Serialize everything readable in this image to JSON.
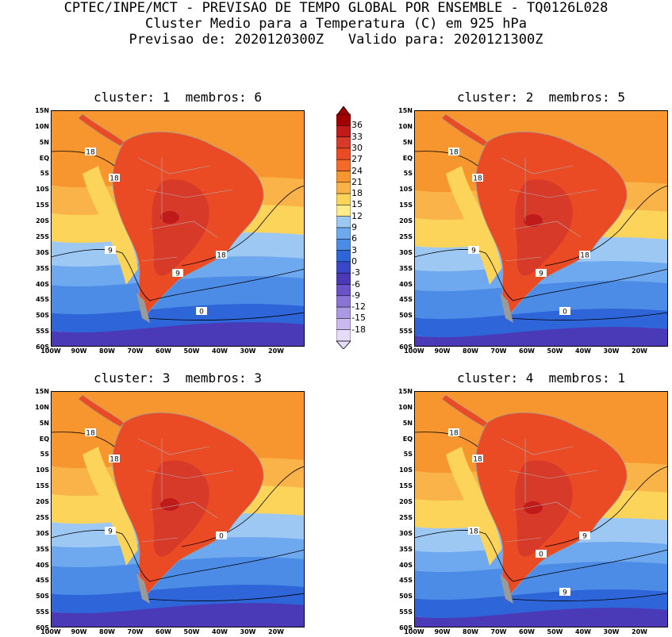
{
  "header": {
    "line1": "CPTEC/INPE/MCT - PREVISAO DE TEMPO GLOBAL POR ENSEMBLE - TQ0126L028",
    "line2": "Cluster Medio para a Temperatura (C) em 925 hPa",
    "line3": "Previsao de: 2020120300Z   Valido para: 2020121300Z"
  },
  "panels": [
    {
      "title": "cluster: 1  membros: 6",
      "contour_labels": [
        "18",
        "18",
        "9",
        "18",
        "9",
        "0"
      ]
    },
    {
      "title": "cluster: 2  membros: 5",
      "contour_labels": [
        "18",
        "18",
        "9",
        "18",
        "9",
        "0"
      ]
    },
    {
      "title": "cluster: 3  membros: 3",
      "contour_labels": [
        "18",
        "18",
        "9",
        "0"
      ]
    },
    {
      "title": "cluster: 4  membros: 1",
      "contour_labels": [
        "18",
        "18",
        "18",
        "9",
        "0",
        "9"
      ]
    }
  ],
  "lat_labels": [
    "15N",
    "10N",
    "5N",
    "EQ",
    "5S",
    "10S",
    "15S",
    "20S",
    "25S",
    "30S",
    "35S",
    "40S",
    "45S",
    "50S",
    "55S",
    "60S"
  ],
  "lon_labels": [
    "100W",
    "90W",
    "80W",
    "70W",
    "60W",
    "50W",
    "40W",
    "30W",
    "20W"
  ],
  "colorbar": {
    "labels": [
      "36",
      "33",
      "30",
      "27",
      "24",
      "21",
      "18",
      "15",
      "12",
      "9",
      "6",
      "3",
      "0",
      "-3",
      "-6",
      "-9",
      "-12",
      "-15",
      "-18"
    ],
    "colors": [
      "#a00000",
      "#c01a1a",
      "#d83a2a",
      "#ea4a24",
      "#f46a2a",
      "#f7962e",
      "#f9b348",
      "#fcd45a",
      "#fdec8c",
      "#9ec8f4",
      "#6ea8ee",
      "#4c8be6",
      "#2e66d9",
      "#3848c8",
      "#4a3ab8",
      "#6a52c8",
      "#8a74d6",
      "#ab98e2",
      "#cab9ef",
      "#e6dcf7"
    ]
  }
}
